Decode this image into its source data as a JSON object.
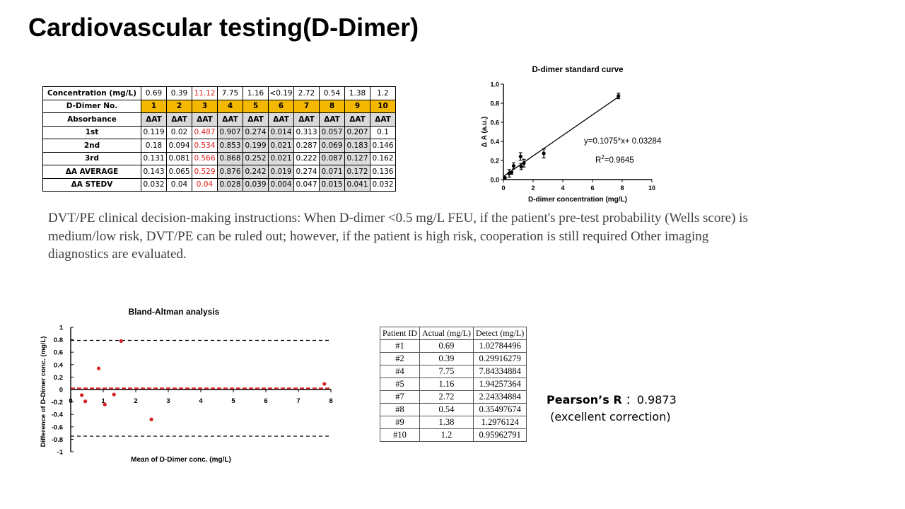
{
  "page": {
    "title": "Cardiovascular testing(D-Dimer)",
    "description": "DVT/PE clinical decision-making instructions: When D-dimer <0.5 mg/L FEU, if the patient's pre-test probability (Wells score) is medium/low risk, DVT/PE can be ruled out; however, if the patient is high risk, cooperation is still required Other imaging diagnostics are evaluated."
  },
  "assay_table": {
    "rows": [
      {
        "label": "Concentration (mg/L)",
        "values": [
          "0.69",
          "0.39",
          "11.12",
          "7.75",
          "1.16",
          "<0.19",
          "2.72",
          "0.54",
          "1.38",
          "1.2"
        ]
      },
      {
        "label": "D-Dimer No.",
        "values": [
          "1",
          "2",
          "3",
          "4",
          "5",
          "6",
          "7",
          "8",
          "9",
          "10"
        ]
      },
      {
        "label": "Absorbance",
        "values": [
          "ΔAT",
          "ΔAT",
          "ΔAT",
          "ΔAT",
          "ΔAT",
          "ΔAT",
          "ΔAT",
          "ΔAT",
          "ΔAT",
          "ΔAT"
        ]
      },
      {
        "label": "1st",
        "values": [
          "0.119",
          "0.02",
          "0.487",
          "0.907",
          "0.274",
          "0.014",
          "0.313",
          "0.057",
          "0.207",
          "0.1"
        ]
      },
      {
        "label": "2nd",
        "values": [
          "0.18",
          "0.094",
          "0.534",
          "0.853",
          "0.199",
          "0.021",
          "0.287",
          "0.069",
          "0.183",
          "0.146"
        ]
      },
      {
        "label": "3rd",
        "values": [
          "0.131",
          "0.081",
          "0.566",
          "0.868",
          "0.252",
          "0.021",
          "0.222",
          "0.087",
          "0.127",
          "0.162"
        ]
      },
      {
        "label": "ΔA AVERAGE",
        "values": [
          "0.143",
          "0.065",
          "0.529",
          "0.876",
          "0.242",
          "0.019",
          "0.274",
          "0.071",
          "0.172",
          "0.136"
        ]
      },
      {
        "label": "ΔA STEDV",
        "values": [
          "0.032",
          "0.04",
          "0.04",
          "0.028",
          "0.039",
          "0.004",
          "0.047",
          "0.015",
          "0.041",
          "0.032"
        ]
      }
    ],
    "highlight_color": "#f5b800",
    "alert_color": "#e02020"
  },
  "correlation_table": {
    "headers": [
      "Patient ID",
      "Actual (mg/L)",
      "Detect (mg/L)"
    ],
    "rows": [
      [
        "#1",
        "0.69",
        "1.02784496"
      ],
      [
        "#2",
        "0.39",
        "0.29916279"
      ],
      [
        "#4",
        "7.75",
        "7.84334884"
      ],
      [
        "#5",
        "1.16",
        "1.94257364"
      ],
      [
        "#7",
        "2.72",
        "2.24334884"
      ],
      [
        "#8",
        "0.54",
        "0.35497674"
      ],
      [
        "#9",
        "1.38",
        "1.2976124"
      ],
      [
        "#10",
        "1.2",
        "0.95962791"
      ]
    ]
  },
  "pearson": {
    "label": "Pearson’s R",
    "separator": "：",
    "value": "0.9873",
    "note": "(excellent correction)"
  },
  "chart_data": [
    {
      "type": "scatter",
      "title": "D-dimer standard curve",
      "xlabel": "D-dimer concentration (mg/L)",
      "ylabel": "Δ A (a.u.)",
      "xlim": [
        0,
        10
      ],
      "ylim": [
        0,
        1.0
      ],
      "xticks": [
        "0",
        "2",
        "4",
        "6",
        "8",
        "10"
      ],
      "yticks": [
        "0.0",
        "0.2",
        "0.4",
        "0.6",
        "0.8",
        "1.0"
      ],
      "points": [
        {
          "x": 0.39,
          "y": 0.065,
          "err": 0.04
        },
        {
          "x": 0.54,
          "y": 0.071,
          "err": 0.015
        },
        {
          "x": 0.69,
          "y": 0.143,
          "err": 0.032
        },
        {
          "x": 1.16,
          "y": 0.242,
          "err": 0.039
        },
        {
          "x": 1.2,
          "y": 0.136,
          "err": 0.032
        },
        {
          "x": 1.38,
          "y": 0.172,
          "err": 0.041
        },
        {
          "x": 2.72,
          "y": 0.274,
          "err": 0.047
        },
        {
          "x": 7.75,
          "y": 0.876,
          "err": 0.028
        },
        {
          "x": 0.1,
          "y": 0.019,
          "err": 0.004
        }
      ],
      "fit": {
        "slope": 0.1075,
        "intercept": 0.03284,
        "x_range": [
          0,
          7.75
        ]
      },
      "equation": "y=0.1075*x+ 0.03284",
      "r2_prefix": "R",
      "r2_sup": "2",
      "r2_suffix": "=0.9645",
      "color": "#000000"
    },
    {
      "type": "scatter",
      "title": "Bland-Altman analysis",
      "xlabel": "Mean of D-Dimer conc. (mg/L)",
      "ylabel": "Difference of D-Dimer conc. (mg/L)",
      "xlim": [
        0,
        8
      ],
      "ylim": [
        -1,
        1
      ],
      "xticks": [
        "0",
        "1",
        "2",
        "3",
        "4",
        "5",
        "6",
        "7",
        "8"
      ],
      "yticks": [
        "1",
        "0.8",
        "0.6",
        "0.4",
        "0.2",
        "0",
        "-0.2",
        "-0.4",
        "-0.6",
        "-0.8",
        "-1"
      ],
      "points": [
        {
          "x": 0.34,
          "y": -0.09
        },
        {
          "x": 0.45,
          "y": -0.19
        },
        {
          "x": 0.86,
          "y": 0.34
        },
        {
          "x": 1.05,
          "y": -0.24
        },
        {
          "x": 1.33,
          "y": -0.08
        },
        {
          "x": 1.55,
          "y": 0.78
        },
        {
          "x": 2.48,
          "y": -0.48
        },
        {
          "x": 7.8,
          "y": 0.09
        }
      ],
      "mean_line": 0.02,
      "upper_loa": 0.79,
      "lower_loa": -0.75,
      "point_color": "#d42020",
      "mean_line_color": "#e02020"
    }
  ]
}
